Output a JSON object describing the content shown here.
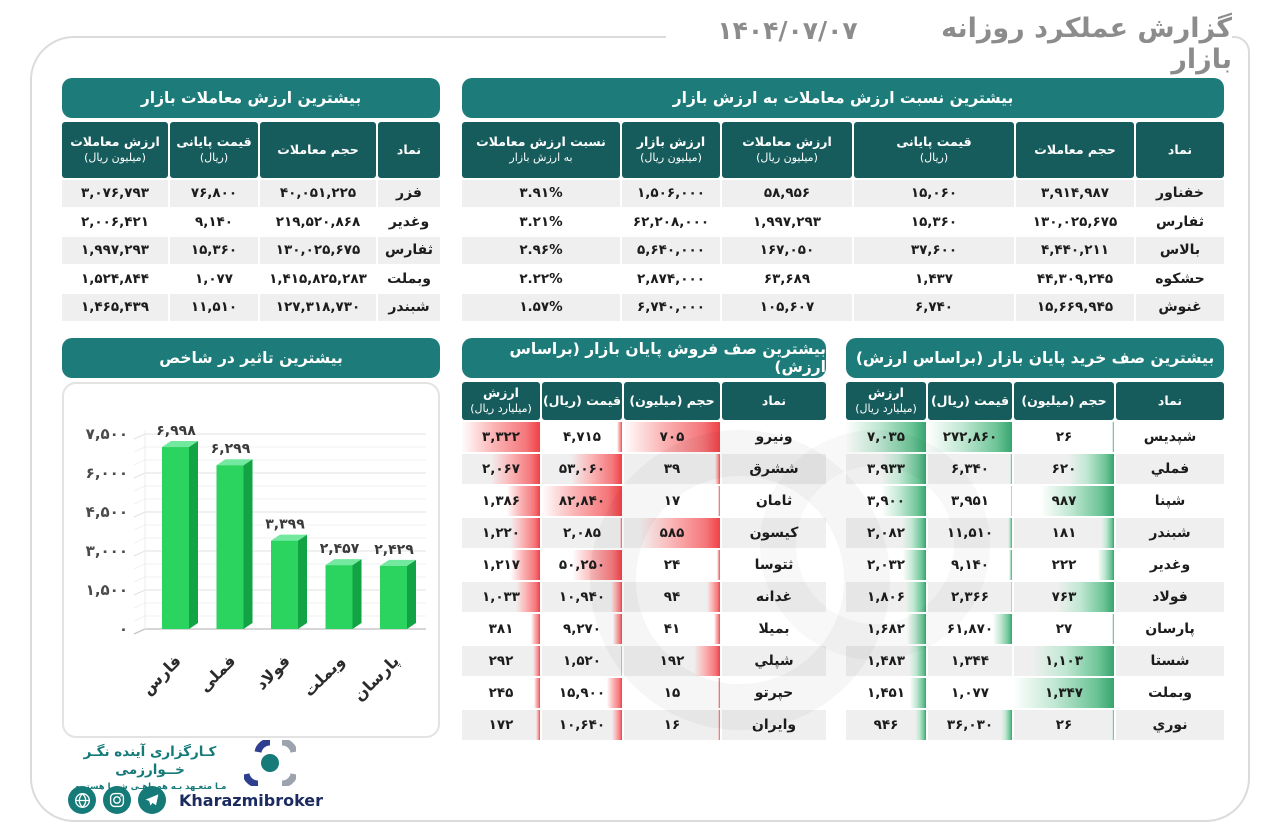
{
  "header": {
    "title": "گزارش عملکرد روزانه بازار",
    "date": "۱۴۰۴/۰۷/۰۷"
  },
  "colors": {
    "teal_title": "#1D7C7A",
    "teal_header": "#175C5D",
    "row_stripe": "#EFEFEF",
    "red_bar": "#F35A5F",
    "green_bar": "#5FBE8C",
    "chart_green": "#2BD35F",
    "brand_teal": "#157A78",
    "brand_navy": "#1B2B5F"
  },
  "tables": {
    "top_value": {
      "title": "بیشترین ارزش معاملات بازار",
      "headers": [
        [
          "نماد"
        ],
        [
          "حجم معاملات"
        ],
        [
          "قیمت پایانی",
          "(ریال)"
        ],
        [
          "ارزش معاملات",
          "(میلیون ریال)"
        ]
      ],
      "rows": [
        [
          "فزر",
          "۴۰,۰۵۱,۲۲۵",
          "۷۶,۸۰۰",
          "۳,۰۷۶,۷۹۳"
        ],
        [
          "وغدیر",
          "۲۱۹,۵۲۰,۸۶۸",
          "۹,۱۴۰",
          "۲,۰۰۶,۴۲۱"
        ],
        [
          "ثفارس",
          "۱۳۰,۰۲۵,۶۷۵",
          "۱۵,۳۶۰",
          "۱,۹۹۷,۲۹۳"
        ],
        [
          "وبملت",
          "۱,۴۱۵,۸۲۵,۲۸۳",
          "۱,۰۷۷",
          "۱,۵۲۴,۸۴۴"
        ],
        [
          "شبندر",
          "۱۲۷,۳۱۸,۷۳۰",
          "۱۱,۵۱۰",
          "۱,۴۶۵,۴۳۹"
        ]
      ]
    },
    "top_ratio": {
      "title": "بیشترین نسبت ارزش معاملات به ارزش بازار",
      "headers": [
        [
          "نماد"
        ],
        [
          "حجم معاملات"
        ],
        [
          "قیمت پایانی",
          "(ریال)"
        ],
        [
          "ارزش معاملات",
          "(میلیون ریال)"
        ],
        [
          "ارزش بازار",
          "(میلیون ریال)"
        ],
        [
          "نسبت ارزش معاملات",
          "به ارزش بازار"
        ]
      ],
      "rows": [
        [
          "خفناور",
          "۳,۹۱۴,۹۸۷",
          "۱۵,۰۶۰",
          "۵۸,۹۵۶",
          "۱,۵۰۶,۰۰۰",
          "۳.۹۱%"
        ],
        [
          "ثفارس",
          "۱۳۰,۰۲۵,۶۷۵",
          "۱۵,۳۶۰",
          "۱,۹۹۷,۲۹۳",
          "۶۲,۲۰۸,۰۰۰",
          "۳.۲۱%"
        ],
        [
          "بالاس",
          "۴,۴۴۰,۲۱۱",
          "۳۷,۶۰۰",
          "۱۶۷,۰۵۰",
          "۵,۶۴۰,۰۰۰",
          "۲.۹۶%"
        ],
        [
          "حشکوه",
          "۴۴,۳۰۹,۲۴۵",
          "۱,۴۳۷",
          "۶۳,۶۸۹",
          "۲,۸۷۴,۰۰۰",
          "۲.۲۲%"
        ],
        [
          "غنوش",
          "۱۵,۶۶۹,۹۴۵",
          "۶,۷۴۰",
          "۱۰۵,۶۰۷",
          "۶,۷۴۰,۰۰۰",
          "۱.۵۷%"
        ]
      ]
    },
    "sell_queue": {
      "title": "بیشترین صف فروش پایان بازار (براساس ارزش)",
      "headers": [
        [
          "نماد"
        ],
        [
          "حجم (میلیون)"
        ],
        [
          "قیمت (ریال)"
        ],
        [
          "ارزش",
          "(میلیارد ریال)"
        ]
      ],
      "bar_color": "red",
      "rows": [
        {
          "symbol": "ونیرو",
          "volume": "۷۰۵",
          "volume_n": 705,
          "price": "۴,۷۱۵",
          "price_n": 4715,
          "value": "۳,۳۲۲",
          "value_n": 3322
        },
        {
          "symbol": "ششرق",
          "volume": "۳۹",
          "volume_n": 39,
          "price": "۵۳,۰۶۰",
          "price_n": 53060,
          "value": "۲,۰۶۷",
          "value_n": 2067
        },
        {
          "symbol": "ثامان",
          "volume": "۱۷",
          "volume_n": 17,
          "price": "۸۲,۸۴۰",
          "price_n": 82840,
          "value": "۱,۳۸۶",
          "value_n": 1386
        },
        {
          "symbol": "کیسون",
          "volume": "۵۸۵",
          "volume_n": 585,
          "price": "۲,۰۸۵",
          "price_n": 2085,
          "value": "۱,۲۲۰",
          "value_n": 1220
        },
        {
          "symbol": "ثتوسا",
          "volume": "۲۴",
          "volume_n": 24,
          "price": "۵۰,۲۵۰",
          "price_n": 50250,
          "value": "۱,۲۱۷",
          "value_n": 1217
        },
        {
          "symbol": "غدانه",
          "volume": "۹۴",
          "volume_n": 94,
          "price": "۱۰,۹۴۰",
          "price_n": 10940,
          "value": "۱,۰۳۳",
          "value_n": 1033
        },
        {
          "symbol": "بمیلا",
          "volume": "۴۱",
          "volume_n": 41,
          "price": "۹,۲۷۰",
          "price_n": 9270,
          "value": "۳۸۱",
          "value_n": 381
        },
        {
          "symbol": "شپلي",
          "volume": "۱۹۲",
          "volume_n": 192,
          "price": "۱,۵۲۰",
          "price_n": 1520,
          "value": "۲۹۲",
          "value_n": 292
        },
        {
          "symbol": "حپرتو",
          "volume": "۱۵",
          "volume_n": 15,
          "price": "۱۵,۹۰۰",
          "price_n": 15900,
          "value": "۲۴۵",
          "value_n": 245
        },
        {
          "symbol": "وایران",
          "volume": "۱۶",
          "volume_n": 16,
          "price": "۱۰,۶۴۰",
          "price_n": 10640,
          "value": "۱۷۲",
          "value_n": 172
        }
      ]
    },
    "buy_queue": {
      "title": "بیشترین صف خرید پایان بازار (براساس ارزش)",
      "headers": [
        [
          "نماد"
        ],
        [
          "حجم (میلیون)"
        ],
        [
          "قیمت (ریال)"
        ],
        [
          "ارزش",
          "(میلیارد ریال)"
        ]
      ],
      "bar_color": "green",
      "rows": [
        {
          "symbol": "شپدیس",
          "volume": "۲۶",
          "volume_n": 26,
          "price": "۲۷۲,۸۶۰",
          "price_n": 272860,
          "value": "۷,۰۳۵",
          "value_n": 7035
        },
        {
          "symbol": "فملي",
          "volume": "۶۲۰",
          "volume_n": 620,
          "price": "۶,۳۴۰",
          "price_n": 6340,
          "value": "۳,۹۳۳",
          "value_n": 3933
        },
        {
          "symbol": "شپنا",
          "volume": "۹۸۷",
          "volume_n": 987,
          "price": "۳,۹۵۱",
          "price_n": 3951,
          "value": "۳,۹۰۰",
          "value_n": 3900
        },
        {
          "symbol": "شبندر",
          "volume": "۱۸۱",
          "volume_n": 181,
          "price": "۱۱,۵۱۰",
          "price_n": 11510,
          "value": "۲,۰۸۲",
          "value_n": 2082
        },
        {
          "symbol": "وغدیر",
          "volume": "۲۲۲",
          "volume_n": 222,
          "price": "۹,۱۴۰",
          "price_n": 9140,
          "value": "۲,۰۳۲",
          "value_n": 2032
        },
        {
          "symbol": "فولاد",
          "volume": "۷۶۳",
          "volume_n": 763,
          "price": "۲,۳۶۶",
          "price_n": 2366,
          "value": "۱,۸۰۶",
          "value_n": 1806
        },
        {
          "symbol": "پارسان",
          "volume": "۲۷",
          "volume_n": 27,
          "price": "۶۱,۸۷۰",
          "price_n": 61870,
          "value": "۱,۶۸۲",
          "value_n": 1682
        },
        {
          "symbol": "شستا",
          "volume": "۱,۱۰۳",
          "volume_n": 1103,
          "price": "۱,۳۴۴",
          "price_n": 1344,
          "value": "۱,۴۸۳",
          "value_n": 1483
        },
        {
          "symbol": "وبملت",
          "volume": "۱,۳۴۷",
          "volume_n": 1347,
          "price": "۱,۰۷۷",
          "price_n": 1077,
          "value": "۱,۴۵۱",
          "value_n": 1451
        },
        {
          "symbol": "نوري",
          "volume": "۲۶",
          "volume_n": 26,
          "price": "۳۶,۰۳۰",
          "price_n": 36030,
          "value": "۹۴۶",
          "value_n": 946
        }
      ]
    }
  },
  "chart_data": {
    "type": "bar",
    "title": "بیشترین تاثیر در شاخص",
    "categories": [
      "فارس",
      "فملی",
      "فولاد",
      "وبملت",
      "پارسان"
    ],
    "values": [
      6998,
      6299,
      3399,
      2457,
      2429
    ],
    "value_labels": [
      "۶,۹۹۸",
      "۶,۲۹۹",
      "۳,۳۹۹",
      "۲,۴۵۷",
      "۲,۴۲۹"
    ],
    "xlabel": "",
    "ylabel": "",
    "ylim": [
      0,
      7500
    ],
    "ytick_step": 1500,
    "ytick_labels": [
      "۰",
      "۱,۵۰۰",
      "۳,۰۰۰",
      "۴,۵۰۰",
      "۶,۰۰۰",
      "۷,۵۰۰"
    ],
    "grid": true,
    "legend": "none",
    "bar_style": "3d-green"
  },
  "footer": {
    "brand": "کـارگزاری آینده نگـر خــوارزمی",
    "tagline": "مـا متعـهد بـه همراهـی شمـا هستیـم",
    "handle": "Kharazmibroker",
    "icons": [
      "globe-icon",
      "instagram-icon",
      "telegram-icon"
    ]
  }
}
